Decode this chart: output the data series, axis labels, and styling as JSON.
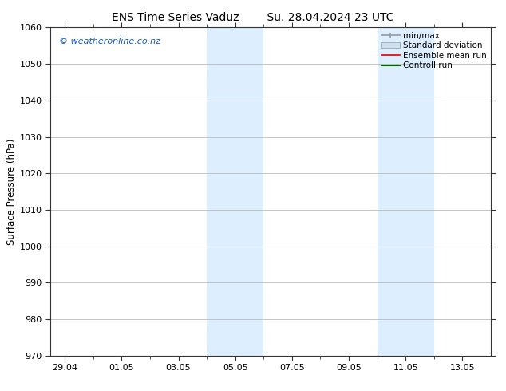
{
  "title_left": "ENS Time Series Vaduz",
  "title_right": "Su. 28.04.2024 23 UTC",
  "ylabel": "Surface Pressure (hPa)",
  "ylim": [
    970,
    1060
  ],
  "yticks": [
    970,
    980,
    990,
    1000,
    1010,
    1020,
    1030,
    1040,
    1050,
    1060
  ],
  "xtick_labels": [
    "29.04",
    "01.05",
    "03.05",
    "05.05",
    "07.05",
    "09.05",
    "11.05",
    "13.05"
  ],
  "xtick_positions": [
    0,
    2,
    4,
    6,
    8,
    10,
    12,
    14
  ],
  "x_minor_positions": [
    1,
    3,
    5,
    7,
    9,
    11,
    13
  ],
  "xlim": [
    -0.5,
    15.0
  ],
  "watermark": "© weatheronline.co.nz",
  "watermark_color": "#1155cc",
  "bg_color": "#ffffff",
  "plot_bg_color": "#ffffff",
  "shaded_regions": [
    {
      "x_start": 5.0,
      "x_end": 6.0,
      "color": "#ddeeff"
    },
    {
      "x_start": 6.0,
      "x_end": 7.0,
      "color": "#ddeeff"
    },
    {
      "x_start": 11.0,
      "x_end": 12.0,
      "color": "#ddeeff"
    },
    {
      "x_start": 12.0,
      "x_end": 13.0,
      "color": "#ddeeff"
    }
  ],
  "legend_items": [
    {
      "label": "min/max",
      "color": "#999999",
      "lw": 1.2,
      "ls": "-",
      "type": "line_with_markers"
    },
    {
      "label": "Standard deviation",
      "color": "#cce0f0",
      "lw": 8,
      "ls": "-",
      "type": "band"
    },
    {
      "label": "Ensemble mean run",
      "color": "#dd0000",
      "lw": 1.2,
      "ls": "-",
      "type": "line"
    },
    {
      "label": "Controll run",
      "color": "#006600",
      "lw": 1.5,
      "ls": "-",
      "type": "line"
    }
  ],
  "title_fontsize": 10,
  "tick_fontsize": 8,
  "label_fontsize": 8.5,
  "watermark_fontsize": 8,
  "legend_fontsize": 7.5,
  "grid_color": "#bbbbbb",
  "spine_color": "#333333",
  "tick_color": "#333333"
}
